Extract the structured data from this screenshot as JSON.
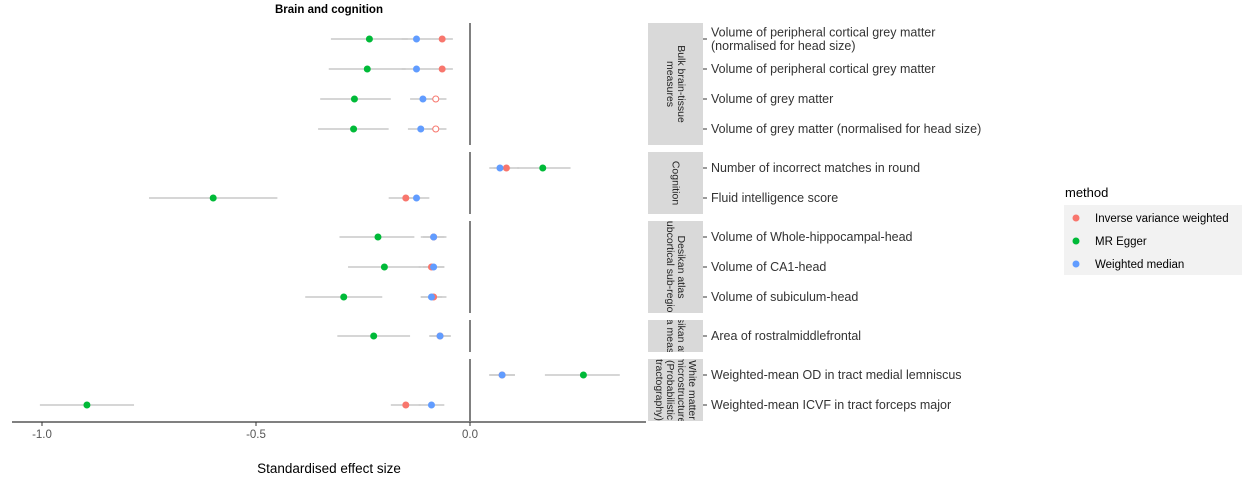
{
  "chart_data": {
    "type": "scatter",
    "subtype": "forest-plot",
    "title": "Brain and cognition",
    "xlabel": "Standardised effect size",
    "ylabel": "",
    "xlim": [
      -1.05,
      0.42
    ],
    "xticks": [
      -1.0,
      -0.5,
      0.0
    ],
    "xtick_labels": [
      "-1.0",
      "-0.5",
      "0.0"
    ],
    "reference_line_x": 0,
    "grid": false,
    "legend": {
      "title": "method",
      "position": "right",
      "entries": [
        "Inverse variance weighted",
        "MR Egger",
        "Weighted median"
      ]
    },
    "colors": {
      "Inverse variance weighted": "#F8766D",
      "MR Egger": "#00BA38",
      "Weighted median": "#619CFF",
      "ci_line": "#BEBEBE",
      "strip_bg": "#D9D9D9"
    },
    "panels": [
      {
        "label_lines": [
          "Bulk brain-tissue",
          "measures"
        ],
        "rows": [
          {
            "label_lines": [
              "Volume of peripheral cortical grey matter",
              "(normalised for head size)"
            ],
            "estimates": [
              {
                "method": "Inverse variance weighted",
                "est": -0.065,
                "lo": -0.09,
                "hi": -0.04,
                "filled": true
              },
              {
                "method": "MR Egger",
                "est": -0.235,
                "lo": -0.325,
                "hi": -0.145,
                "filled": true
              },
              {
                "method": "Weighted median",
                "est": -0.125,
                "lo": -0.16,
                "hi": -0.09,
                "filled": true
              }
            ]
          },
          {
            "label_lines": [
              "Volume of peripheral cortical grey matter"
            ],
            "estimates": [
              {
                "method": "Inverse variance weighted",
                "est": -0.065,
                "lo": -0.09,
                "hi": -0.04,
                "filled": true
              },
              {
                "method": "MR Egger",
                "est": -0.24,
                "lo": -0.33,
                "hi": -0.15,
                "filled": true
              },
              {
                "method": "Weighted median",
                "est": -0.125,
                "lo": -0.16,
                "hi": -0.09,
                "filled": true
              }
            ]
          },
          {
            "label_lines": [
              "Volume of grey matter"
            ],
            "estimates": [
              {
                "method": "Inverse variance weighted",
                "est": -0.08,
                "lo": -0.105,
                "hi": -0.055,
                "filled": false
              },
              {
                "method": "MR Egger",
                "est": -0.27,
                "lo": -0.35,
                "hi": -0.185,
                "filled": true
              },
              {
                "method": "Weighted median",
                "est": -0.11,
                "lo": -0.14,
                "hi": -0.08,
                "filled": true
              }
            ]
          },
          {
            "label_lines": [
              "Volume of grey matter (normalised for head size)"
            ],
            "estimates": [
              {
                "method": "Inverse variance weighted",
                "est": -0.08,
                "lo": -0.105,
                "hi": -0.055,
                "filled": false
              },
              {
                "method": "MR Egger",
                "est": -0.272,
                "lo": -0.355,
                "hi": -0.19,
                "filled": true
              },
              {
                "method": "Weighted median",
                "est": -0.115,
                "lo": -0.145,
                "hi": -0.085,
                "filled": true
              }
            ]
          }
        ]
      },
      {
        "label_lines": [
          "Cognition"
        ],
        "rows": [
          {
            "label_lines": [
              "Number of incorrect matches in round"
            ],
            "estimates": [
              {
                "method": "Inverse variance weighted",
                "est": 0.085,
                "lo": 0.055,
                "hi": 0.115,
                "filled": true
              },
              {
                "method": "MR Egger",
                "est": 0.17,
                "lo": 0.11,
                "hi": 0.235,
                "filled": true
              },
              {
                "method": "Weighted median",
                "est": 0.07,
                "lo": 0.045,
                "hi": 0.095,
                "filled": true
              }
            ]
          },
          {
            "label_lines": [
              "Fluid intelligence score"
            ],
            "estimates": [
              {
                "method": "Inverse variance weighted",
                "est": -0.15,
                "lo": -0.19,
                "hi": -0.115,
                "filled": true
              },
              {
                "method": "MR Egger",
                "est": -0.6,
                "lo": -0.75,
                "hi": -0.45,
                "filled": true
              },
              {
                "method": "Weighted median",
                "est": -0.125,
                "lo": -0.155,
                "hi": -0.095,
                "filled": true
              }
            ]
          }
        ]
      },
      {
        "label_lines": [
          "Desikan atlas",
          "subcortical sub-region"
        ],
        "rows": [
          {
            "label_lines": [
              "Volume of Whole-hippocampal-head"
            ],
            "estimates": [
              {
                "method": "Inverse variance weighted",
                "est": -0.085,
                "lo": -0.115,
                "hi": -0.055,
                "filled": true
              },
              {
                "method": "MR Egger",
                "est": -0.215,
                "lo": -0.305,
                "hi": -0.13,
                "filled": true
              },
              {
                "method": "Weighted median",
                "est": -0.085,
                "lo": -0.11,
                "hi": -0.06,
                "filled": true
              }
            ]
          },
          {
            "label_lines": [
              "Volume of CA1-head"
            ],
            "estimates": [
              {
                "method": "Inverse variance weighted",
                "est": -0.09,
                "lo": -0.12,
                "hi": -0.06,
                "filled": true
              },
              {
                "method": "MR Egger",
                "est": -0.2,
                "lo": -0.285,
                "hi": -0.115,
                "filled": true
              },
              {
                "method": "Weighted median",
                "est": -0.085,
                "lo": -0.11,
                "hi": -0.06,
                "filled": true
              }
            ]
          },
          {
            "label_lines": [
              "Volume of subiculum-head"
            ],
            "estimates": [
              {
                "method": "Inverse variance weighted",
                "est": -0.085,
                "lo": -0.115,
                "hi": -0.055,
                "filled": true
              },
              {
                "method": "MR Egger",
                "est": -0.295,
                "lo": -0.385,
                "hi": -0.205,
                "filled": true
              },
              {
                "method": "Weighted median",
                "est": -0.09,
                "lo": -0.115,
                "hi": -0.065,
                "filled": true
              }
            ]
          }
        ]
      },
      {
        "label_lines": [
          "Desikan atlas",
          "area measure"
        ],
        "rows": [
          {
            "label_lines": [
              "Area of rostralmiddlefrontal"
            ],
            "estimates": [
              {
                "method": "Inverse variance weighted",
                "est": -0.07,
                "lo": -0.095,
                "hi": -0.045,
                "filled": true
              },
              {
                "method": "MR Egger",
                "est": -0.225,
                "lo": -0.31,
                "hi": -0.14,
                "filled": true
              },
              {
                "method": "Weighted median",
                "est": -0.07,
                "lo": -0.095,
                "hi": -0.045,
                "filled": true
              }
            ]
          }
        ]
      },
      {
        "label_lines": [
          "White matter",
          "microstructure",
          "(Probabilistic",
          "tractography)"
        ],
        "rows": [
          {
            "label_lines": [
              "Weighted-mean OD in tract medial lemniscus"
            ],
            "estimates": [
              {
                "method": "Inverse variance weighted",
                "est": 0.075,
                "lo": 0.045,
                "hi": 0.105,
                "filled": true
              },
              {
                "method": "MR Egger",
                "est": 0.265,
                "lo": 0.175,
                "hi": 0.35,
                "filled": true
              },
              {
                "method": "Weighted median",
                "est": 0.075,
                "lo": 0.045,
                "hi": 0.105,
                "filled": true
              }
            ]
          },
          {
            "label_lines": [
              "Weighted-mean ICVF in tract forceps major"
            ],
            "estimates": [
              {
                "method": "Inverse variance weighted",
                "est": -0.15,
                "lo": -0.185,
                "hi": -0.115,
                "filled": true
              },
              {
                "method": "MR Egger",
                "est": -0.895,
                "lo": -1.005,
                "hi": -0.785,
                "filled": true
              },
              {
                "method": "Weighted median",
                "est": -0.09,
                "lo": -0.12,
                "hi": -0.06,
                "filled": true
              }
            ]
          }
        ]
      }
    ]
  }
}
